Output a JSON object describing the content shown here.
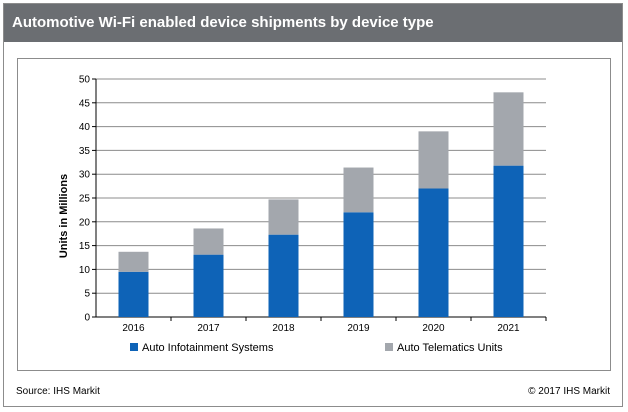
{
  "header": {
    "title": "Automotive Wi-Fi enabled device shipments by device type"
  },
  "footer": {
    "source": "Source: IHS Markit",
    "copyright": "© 2017 IHS Markit"
  },
  "colors": {
    "title_bar": "#6b6e72",
    "infotainment": "#0e63b7",
    "telematics": "#a3a7ad",
    "grid": "#8c8c8c"
  },
  "chart_data": {
    "type": "bar",
    "stacked": true,
    "categories": [
      "2016",
      "2017",
      "2018",
      "2019",
      "2020",
      "2021"
    ],
    "series": [
      {
        "name": "Auto Infotainment Systems",
        "values": [
          9.5,
          13.1,
          17.3,
          22.0,
          27.0,
          31.8
        ]
      },
      {
        "name": "Auto Telematics Units",
        "values": [
          4.2,
          5.5,
          7.4,
          9.4,
          12.0,
          15.4
        ]
      }
    ],
    "title": "",
    "xlabel": "",
    "ylabel": "Units in Millions",
    "ylim": [
      0,
      50
    ],
    "yticks": [
      "0",
      "5",
      "10",
      "15",
      "20",
      "25",
      "30",
      "35",
      "40",
      "45",
      "50"
    ],
    "grid": true,
    "legend_position": "bottom"
  }
}
